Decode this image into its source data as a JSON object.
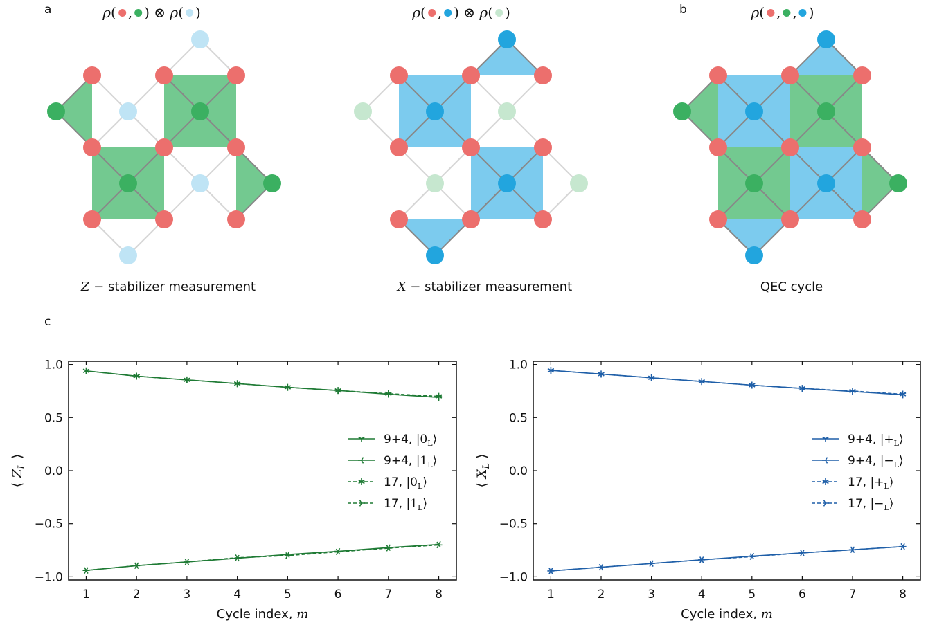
{
  "labels": {
    "a": "a",
    "b": "b",
    "c": "c"
  },
  "colors": {
    "red": "#ec6f6d",
    "green": "#3bb061",
    "green_light": "#c6e7cf",
    "green_fill": "#73c990",
    "blue": "#22a5de",
    "blue_light": "#bfe4f5",
    "blue_fill": "#7ccbee",
    "edge_dark": "#888888",
    "edge_light": "#d6d6d6",
    "z_line": "#1e7a34",
    "x_line": "#1f5fa8"
  },
  "diagrams": [
    {
      "title": {
        "rho": "ρ",
        "open": "(",
        "sep": ",",
        "close": ")",
        "otimes": "⊗"
      },
      "caption_math": "Z",
      "caption_text": " − stabilizer measurement",
      "mode": "Z"
    },
    {
      "title": {
        "rho": "ρ",
        "open": "(",
        "sep": ",",
        "close": ")",
        "otimes": "⊗"
      },
      "caption_math": "X",
      "caption_text": " − stabilizer measurement",
      "mode": "X"
    },
    {
      "title": {
        "rho": "ρ",
        "open": "(",
        "sep": ",",
        "close": ")",
        "otimes": ""
      },
      "caption_math": "",
      "caption_text": "QEC cycle",
      "mode": "QEC"
    }
  ],
  "chart_data": [
    {
      "type": "line",
      "xlabel": "Cycle index, m",
      "xlabel_text": "Cycle index, ",
      "xlabel_math": "m",
      "ylabel": "⟨ Z_L ⟩",
      "ylabel_main": "Z",
      "ylabel_sub": "L",
      "x": [
        1,
        2,
        3,
        4,
        5,
        6,
        7,
        8
      ],
      "xlim": [
        0.65,
        8.35
      ],
      "ylim": [
        -1.03,
        1.03
      ],
      "xticks": [
        "1",
        "2",
        "3",
        "4",
        "5",
        "6",
        "7",
        "8"
      ],
      "yticks": [
        "−1.0",
        "−0.5",
        "0.0",
        "0.5",
        "1.0"
      ],
      "ytick_values": [
        -1.0,
        -0.5,
        0.0,
        0.5,
        1.0
      ],
      "legend_position": "right-middle",
      "series": [
        {
          "name": "9+4, |0L⟩",
          "label_text": "9+4, ",
          "ket": "0",
          "dashed": false,
          "marker": "tri_down",
          "values": [
            0.94,
            0.89,
            0.855,
            0.82,
            0.785,
            0.755,
            0.72,
            0.69
          ]
        },
        {
          "name": "9+4, |1L⟩",
          "label_text": "9+4, ",
          "ket": "1",
          "dashed": false,
          "marker": "tri_left",
          "values": [
            -0.94,
            -0.895,
            -0.86,
            -0.825,
            -0.79,
            -0.76,
            -0.725,
            -0.695
          ]
        },
        {
          "name": "17, |0L⟩",
          "label_text": "17, ",
          "ket": "0",
          "dashed": true,
          "marker": "star",
          "values": [
            0.94,
            0.89,
            0.855,
            0.82,
            0.785,
            0.755,
            0.725,
            0.7
          ]
        },
        {
          "name": "17, |1L⟩",
          "label_text": "17, ",
          "ket": "1",
          "dashed": true,
          "marker": "tri_right",
          "values": [
            -0.94,
            -0.895,
            -0.86,
            -0.82,
            -0.8,
            -0.765,
            -0.73,
            -0.7
          ]
        }
      ]
    },
    {
      "type": "line",
      "xlabel": "Cycle index, m",
      "xlabel_text": "Cycle index, ",
      "xlabel_math": "m",
      "ylabel": "⟨ X_L ⟩",
      "ylabel_main": "X",
      "ylabel_sub": "L",
      "x": [
        1,
        2,
        3,
        4,
        5,
        6,
        7,
        8
      ],
      "xlim": [
        0.65,
        8.35
      ],
      "ylim": [
        -1.03,
        1.03
      ],
      "xticks": [
        "1",
        "2",
        "3",
        "4",
        "5",
        "6",
        "7",
        "8"
      ],
      "yticks": [
        "−1.0",
        "−0.5",
        "0.0",
        "0.5",
        "1.0"
      ],
      "ytick_values": [
        -1.0,
        -0.5,
        0.0,
        0.5,
        1.0
      ],
      "legend_position": "right-middle",
      "series": [
        {
          "name": "9+4, |+L⟩",
          "label_text": "9+4, ",
          "ket": "+",
          "dashed": false,
          "marker": "tri_down",
          "values": [
            0.945,
            0.91,
            0.875,
            0.84,
            0.805,
            0.775,
            0.745,
            0.715
          ]
        },
        {
          "name": "9+4, |−L⟩",
          "label_text": "9+4, ",
          "ket": "−",
          "dashed": false,
          "marker": "tri_left",
          "values": [
            -0.945,
            -0.91,
            -0.875,
            -0.84,
            -0.805,
            -0.775,
            -0.745,
            -0.715
          ]
        },
        {
          "name": "17, |+L⟩",
          "label_text": "17, ",
          "ket": "+",
          "dashed": true,
          "marker": "star",
          "values": [
            0.945,
            0.91,
            0.875,
            0.84,
            0.805,
            0.775,
            0.75,
            0.72
          ]
        },
        {
          "name": "17, |−L⟩",
          "label_text": "17, ",
          "ket": "−",
          "dashed": true,
          "marker": "tri_right",
          "values": [
            -0.945,
            -0.91,
            -0.875,
            -0.84,
            -0.81,
            -0.775,
            -0.745,
            -0.715
          ]
        }
      ]
    }
  ]
}
